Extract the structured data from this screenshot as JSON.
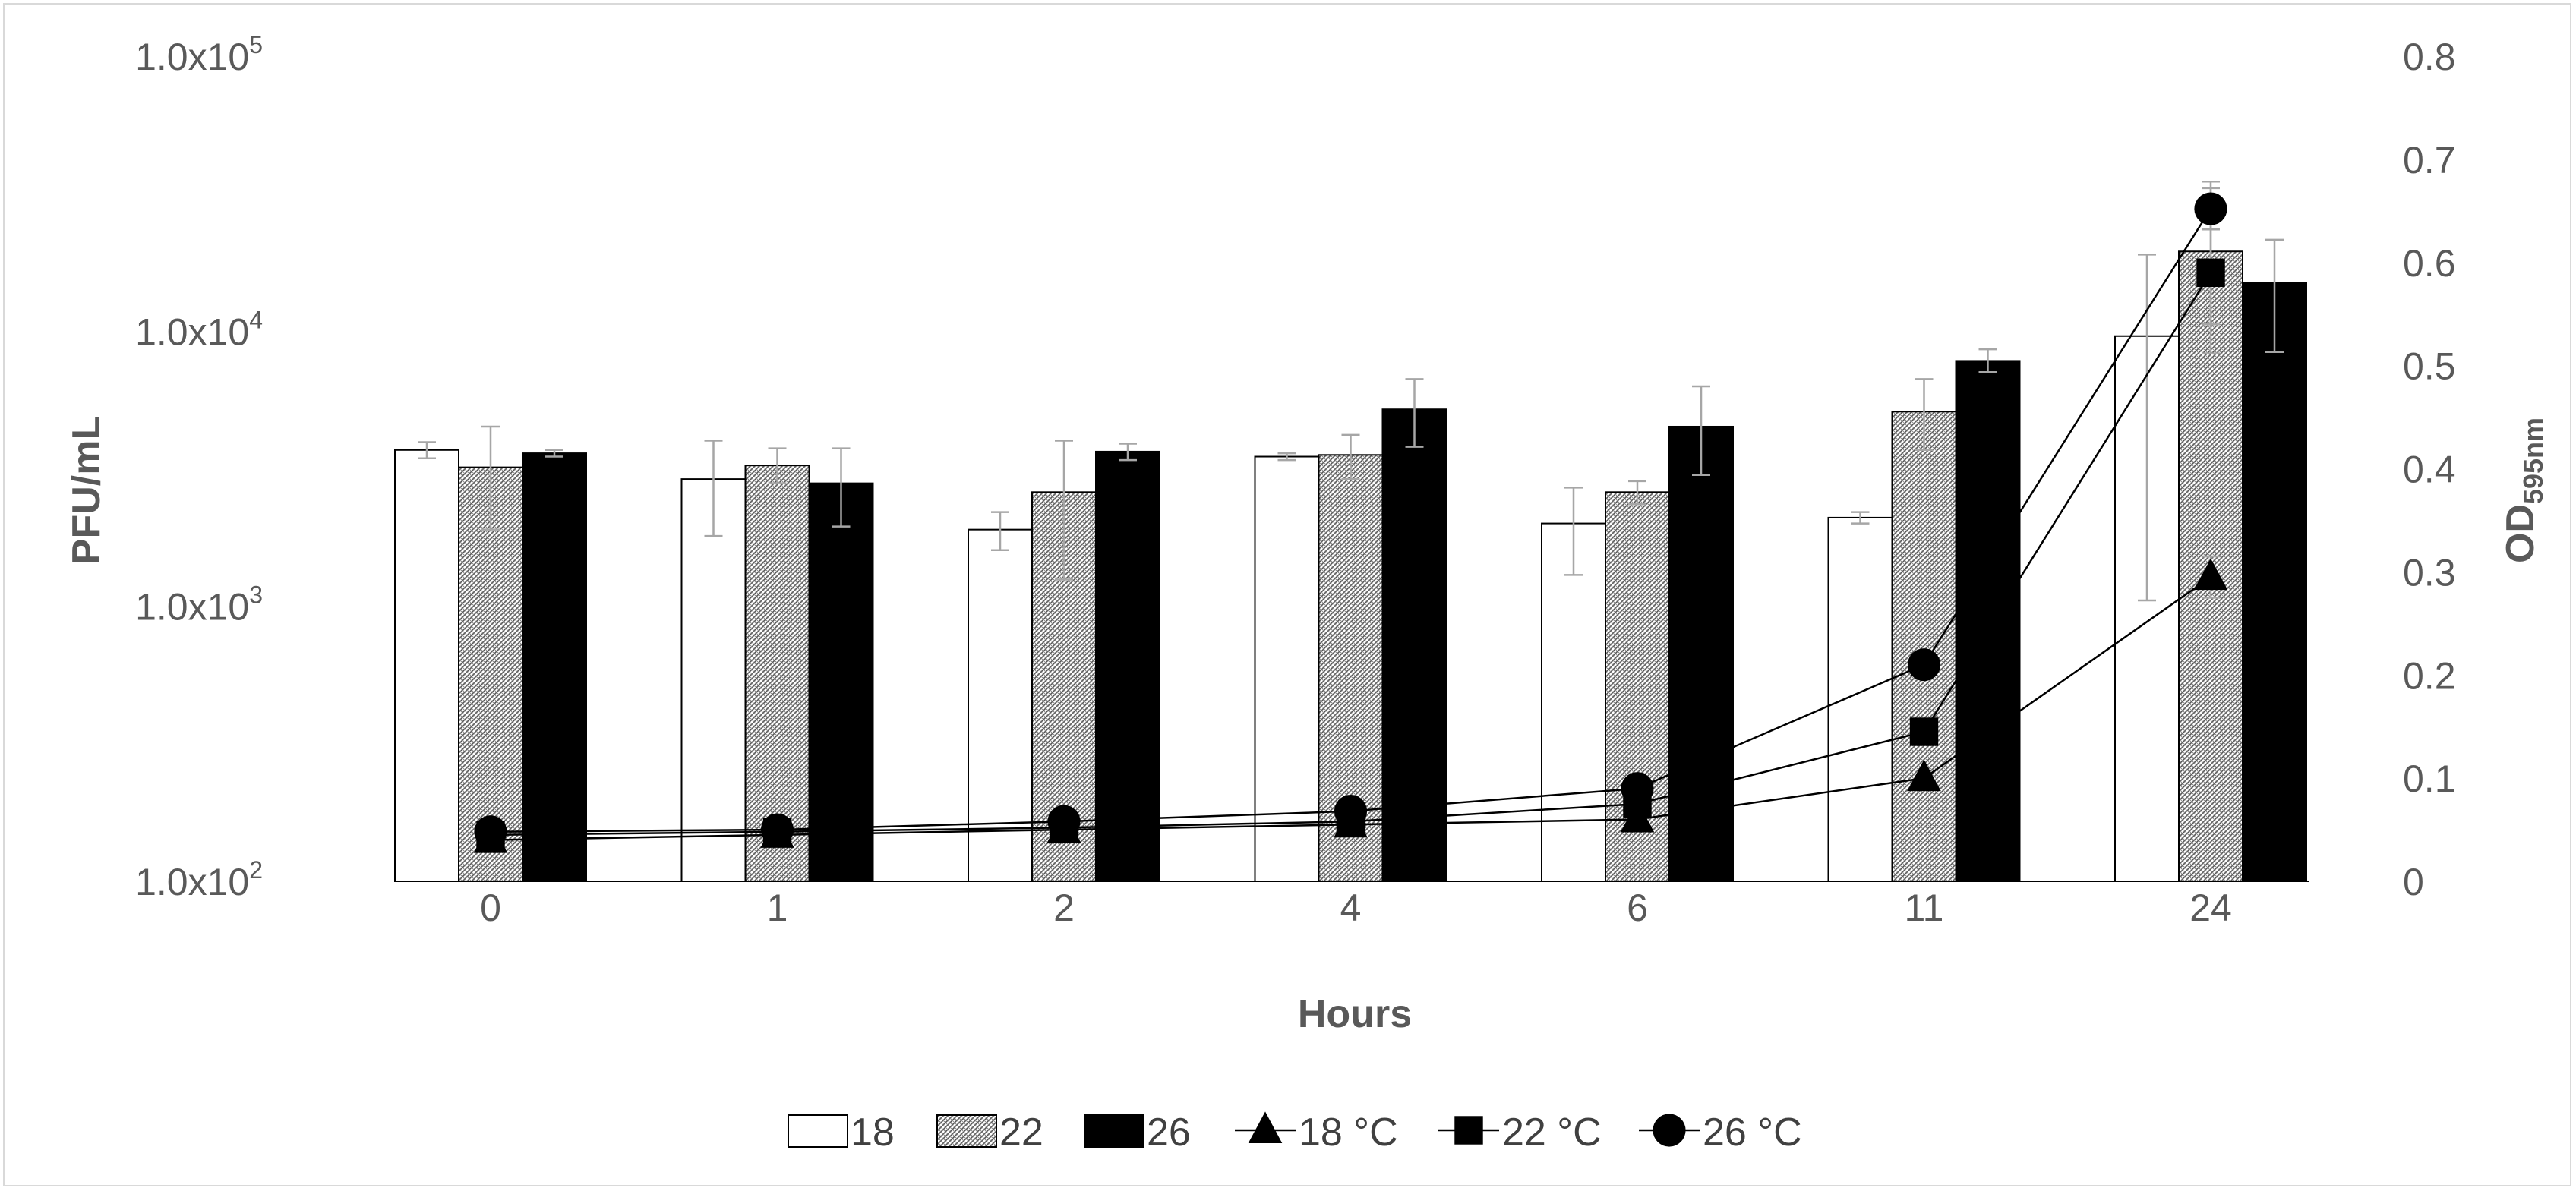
{
  "chart_data": {
    "type": "bar",
    "title": "",
    "xlabel": "Hours",
    "ylabel": "PFU/mL",
    "y2label": {
      "base": "OD",
      "sub": "595nm"
    },
    "categories": [
      "0",
      "1",
      "2",
      "4",
      "6",
      "11",
      "24"
    ],
    "y_scale": "log",
    "ylim": [
      100,
      100000
    ],
    "y_ticks": [
      {
        "value": 100,
        "mantissa": "1.0x10",
        "exp": "2"
      },
      {
        "value": 1000,
        "mantissa": "1.0x10",
        "exp": "3"
      },
      {
        "value": 10000,
        "mantissa": "1.0x10",
        "exp": "4"
      },
      {
        "value": 100000,
        "mantissa": "1.0x10",
        "exp": "5"
      }
    ],
    "y2lim": [
      0,
      0.8
    ],
    "y2_ticks": [
      "0",
      "0.1",
      "0.2",
      "0.3",
      "0.4",
      "0.5",
      "0.6",
      "0.7",
      "0.8"
    ],
    "bar_series": [
      {
        "name": "18",
        "pattern": "white",
        "values": [
          3700,
          2900,
          1900,
          3500,
          2000,
          2100,
          9600
        ],
        "err": [
          [
            3450,
            3950
          ],
          [
            1800,
            4000
          ],
          [
            1600,
            2200
          ],
          [
            3400,
            3600
          ],
          [
            1300,
            2700
          ],
          [
            2000,
            2200
          ],
          [
            1050,
            19000
          ]
        ]
      },
      {
        "name": "22",
        "pattern": "hatched",
        "values": [
          3200,
          3250,
          2600,
          3550,
          2600,
          5100,
          19500
        ],
        "err": [
          [
            1900,
            4500
          ],
          [
            2800,
            3750
          ],
          [
            1250,
            4000
          ],
          [
            2900,
            4200
          ],
          [
            2350,
            2850
          ],
          [
            3700,
            6700
          ],
          [
            8300,
            35000
          ]
        ]
      },
      {
        "name": "26",
        "pattern": "black",
        "values": [
          3600,
          2800,
          3650,
          5200,
          4500,
          7800,
          15000
        ],
        "err": [
          [
            3500,
            3700
          ],
          [
            1950,
            3750
          ],
          [
            3400,
            3900
          ],
          [
            3800,
            6700
          ],
          [
            3000,
            6300
          ],
          [
            7100,
            8600
          ],
          [
            8400,
            21500
          ]
        ]
      }
    ],
    "line_series": [
      {
        "name": "18 °C",
        "marker": "triangle",
        "values": [
          0.04,
          0.045,
          0.05,
          0.055,
          0.06,
          0.1,
          0.295
        ],
        "err": [
          0,
          0,
          0,
          0,
          0,
          0,
          0.02
        ]
      },
      {
        "name": "22 °C",
        "marker": "square",
        "values": [
          0.045,
          0.048,
          0.052,
          0.058,
          0.075,
          0.145,
          0.59
        ],
        "err": [
          0,
          0,
          0,
          0,
          0,
          0,
          0.05
        ]
      },
      {
        "name": "26 °C",
        "marker": "circle",
        "values": [
          0.048,
          0.05,
          0.058,
          0.068,
          0.09,
          0.21,
          0.652
        ],
        "err": [
          0,
          0,
          0,
          0,
          0,
          0,
          0.02
        ]
      }
    ],
    "legend": {
      "position": "bottom",
      "entries": [
        "18",
        "22",
        "26",
        "18 °C",
        "22 °C",
        "26 °C"
      ]
    },
    "colors": {
      "bar_black": "#000000",
      "bar_white": "#ffffff",
      "error_bar": "#a6a6a6",
      "text": "#595959",
      "line": "#000000"
    }
  }
}
